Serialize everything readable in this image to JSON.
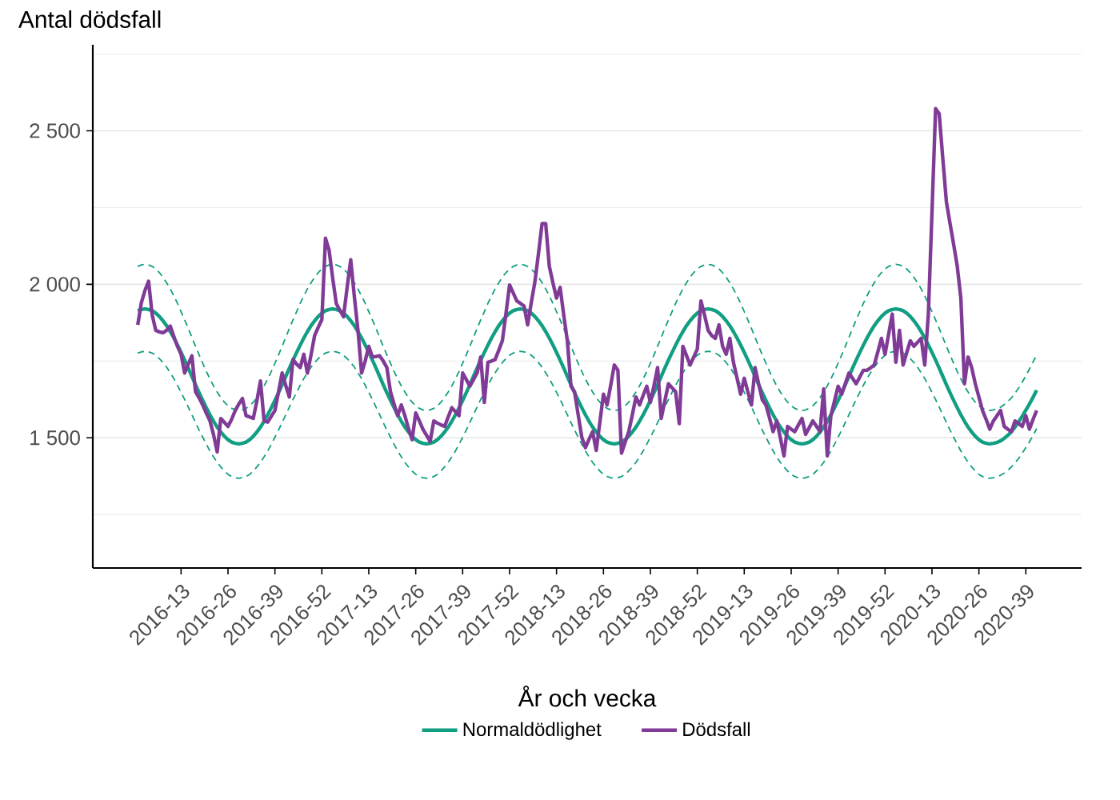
{
  "chart_data": {
    "type": "line",
    "xlabel": "År och vecka",
    "ylabel": "Antal dödsfall",
    "ylim": [
      1076,
      2780
    ],
    "categories": [
      null,
      null,
      null,
      null,
      null,
      null,
      null,
      null,
      null,
      null,
      null,
      null,
      "2016-13",
      null,
      null,
      null,
      null,
      null,
      null,
      null,
      null,
      null,
      null,
      null,
      null,
      "2016-26",
      null,
      null,
      null,
      null,
      null,
      null,
      null,
      null,
      null,
      null,
      null,
      null,
      "2016-39",
      null,
      null,
      null,
      null,
      null,
      null,
      null,
      null,
      null,
      null,
      null,
      null,
      "2016-52",
      null,
      null,
      null,
      null,
      null,
      null,
      null,
      null,
      null,
      null,
      null,
      null,
      "2017-13",
      null,
      null,
      null,
      null,
      null,
      null,
      null,
      null,
      null,
      null,
      null,
      null,
      "2017-26",
      null,
      null,
      null,
      null,
      null,
      null,
      null,
      null,
      null,
      null,
      null,
      null,
      "2017-39",
      null,
      null,
      null,
      null,
      null,
      null,
      null,
      null,
      null,
      null,
      null,
      null,
      "2017-52",
      null,
      null,
      null,
      null,
      null,
      null,
      null,
      null,
      null,
      null,
      null,
      null,
      "2018-13",
      null,
      null,
      null,
      null,
      null,
      null,
      null,
      null,
      null,
      null,
      null,
      null,
      "2018-26",
      null,
      null,
      null,
      null,
      null,
      null,
      null,
      null,
      null,
      null,
      null,
      null,
      "2018-39",
      null,
      null,
      null,
      null,
      null,
      null,
      null,
      null,
      null,
      null,
      null,
      null,
      "2018-52",
      null,
      null,
      null,
      null,
      null,
      null,
      null,
      null,
      null,
      null,
      null,
      null,
      "2019-13",
      null,
      null,
      null,
      null,
      null,
      null,
      null,
      null,
      null,
      null,
      null,
      null,
      "2019-26",
      null,
      null,
      null,
      null,
      null,
      null,
      null,
      null,
      null,
      null,
      null,
      null,
      "2019-39",
      null,
      null,
      null,
      null,
      null,
      null,
      null,
      null,
      null,
      null,
      null,
      null,
      "2019-52",
      null,
      null,
      null,
      null,
      null,
      null,
      null,
      null,
      null,
      null,
      null,
      null,
      "2020-13",
      null,
      null,
      null,
      null,
      null,
      null,
      null,
      null,
      null,
      null,
      null,
      null,
      "2020-26",
      null,
      null,
      null,
      null,
      null,
      null,
      null,
      null,
      null,
      null,
      null,
      null,
      "2020-39",
      null,
      null,
      null
    ],
    "yticks": [
      {
        "value": 1250,
        "label": null
      },
      {
        "value": 1500,
        "label": "1 500"
      },
      {
        "value": 1750,
        "label": null
      },
      {
        "value": 2000,
        "label": "2 000"
      },
      {
        "value": 2250,
        "label": null
      },
      {
        "value": 2500,
        "label": "2 500"
      },
      {
        "value": 2750,
        "label": null
      }
    ],
    "grid": "y",
    "legend": "bottom",
    "series": [
      {
        "color": "#119e82",
        "line_style": "dashed",
        "values": [
          2058,
          2063,
          2065,
          2063,
          2058,
          2050,
          2038,
          2023,
          2005,
          1985,
          1962,
          1938,
          1911,
          1884,
          1856,
          1827,
          1798,
          1770,
          1743,
          1716,
          1692,
          1669,
          1649,
          1631,
          1616,
          1604,
          1596,
          1591,
          1589,
          1591,
          1596,
          1604,
          1616,
          1631,
          1649,
          1669,
          1692,
          1716,
          1743,
          1770,
          1798,
          1827,
          1856,
          1884,
          1911,
          1938,
          1962,
          1985,
          2005,
          2023,
          2038,
          2050,
          2058,
          2063,
          2065,
          2063,
          2058,
          2050,
          2038,
          2023,
          2005,
          1985,
          1962,
          1938,
          1911,
          1884,
          1856,
          1827,
          1798,
          1770,
          1743,
          1716,
          1692,
          1669,
          1649,
          1631,
          1616,
          1604,
          1596,
          1591,
          1589,
          1591,
          1596,
          1604,
          1616,
          1631,
          1649,
          1669,
          1692,
          1716,
          1743,
          1770,
          1798,
          1827,
          1856,
          1884,
          1911,
          1938,
          1962,
          1985,
          2005,
          2023,
          2038,
          2050,
          2058,
          2063,
          2065,
          2063,
          2058,
          2050,
          2038,
          2023,
          2005,
          1985,
          1962,
          1938,
          1911,
          1884,
          1856,
          1827,
          1798,
          1770,
          1743,
          1716,
          1692,
          1669,
          1649,
          1631,
          1616,
          1604,
          1596,
          1591,
          1589,
          1591,
          1596,
          1604,
          1616,
          1631,
          1649,
          1669,
          1692,
          1716,
          1743,
          1770,
          1798,
          1827,
          1856,
          1884,
          1911,
          1938,
          1962,
          1985,
          2005,
          2023,
          2038,
          2050,
          2058,
          2063,
          2065,
          2063,
          2058,
          2050,
          2038,
          2023,
          2005,
          1985,
          1962,
          1938,
          1911,
          1884,
          1856,
          1827,
          1798,
          1770,
          1743,
          1716,
          1692,
          1669,
          1649,
          1631,
          1616,
          1604,
          1596,
          1591,
          1589,
          1591,
          1596,
          1604,
          1616,
          1631,
          1649,
          1669,
          1692,
          1716,
          1743,
          1770,
          1798,
          1827,
          1856,
          1884,
          1911,
          1938,
          1962,
          1985,
          2005,
          2023,
          2038,
          2050,
          2058,
          2063,
          2065,
          2063,
          2058,
          2050,
          2038,
          2023,
          2005,
          1985,
          1962,
          1938,
          1911,
          1884,
          1856,
          1827,
          1798,
          1770,
          1743,
          1716,
          1692,
          1669,
          1649,
          1631,
          1616,
          1604,
          1596,
          1591,
          1589,
          1591,
          1594,
          1600,
          1608,
          1618,
          1630,
          1645,
          1662,
          1681,
          1702,
          1724,
          1747,
          1770
        ]
      },
      {
        "color": "#119e82",
        "line_style": "dashed",
        "values": [
          1776,
          1780,
          1782,
          1780,
          1776,
          1769,
          1758,
          1745,
          1730,
          1712,
          1693,
          1671,
          1648,
          1625,
          1600,
          1575,
          1550,
          1525,
          1502,
          1479,
          1457,
          1438,
          1420,
          1405,
          1392,
          1381,
          1374,
          1370,
          1368,
          1370,
          1374,
          1381,
          1392,
          1405,
          1420,
          1438,
          1457,
          1479,
          1502,
          1525,
          1550,
          1575,
          1600,
          1625,
          1648,
          1671,
          1693,
          1712,
          1730,
          1745,
          1758,
          1769,
          1776,
          1780,
          1782,
          1780,
          1776,
          1769,
          1758,
          1745,
          1730,
          1712,
          1693,
          1671,
          1648,
          1625,
          1600,
          1575,
          1550,
          1525,
          1502,
          1479,
          1457,
          1438,
          1420,
          1405,
          1392,
          1381,
          1374,
          1370,
          1368,
          1370,
          1374,
          1381,
          1392,
          1405,
          1420,
          1438,
          1457,
          1479,
          1502,
          1525,
          1550,
          1575,
          1600,
          1625,
          1648,
          1671,
          1693,
          1712,
          1730,
          1745,
          1758,
          1769,
          1776,
          1780,
          1782,
          1780,
          1776,
          1769,
          1758,
          1745,
          1730,
          1712,
          1693,
          1671,
          1648,
          1625,
          1600,
          1575,
          1550,
          1525,
          1502,
          1479,
          1457,
          1438,
          1420,
          1405,
          1392,
          1381,
          1374,
          1370,
          1368,
          1370,
          1374,
          1381,
          1392,
          1405,
          1420,
          1438,
          1457,
          1479,
          1502,
          1525,
          1550,
          1575,
          1600,
          1625,
          1648,
          1671,
          1693,
          1712,
          1730,
          1745,
          1758,
          1769,
          1776,
          1780,
          1782,
          1780,
          1776,
          1769,
          1758,
          1745,
          1730,
          1712,
          1693,
          1671,
          1648,
          1625,
          1600,
          1575,
          1550,
          1525,
          1502,
          1479,
          1457,
          1438,
          1420,
          1405,
          1392,
          1381,
          1374,
          1370,
          1368,
          1370,
          1374,
          1381,
          1392,
          1405,
          1420,
          1438,
          1457,
          1479,
          1502,
          1525,
          1550,
          1575,
          1600,
          1625,
          1648,
          1671,
          1693,
          1712,
          1730,
          1745,
          1758,
          1769,
          1776,
          1780,
          1782,
          1780,
          1776,
          1769,
          1758,
          1745,
          1730,
          1712,
          1693,
          1671,
          1648,
          1625,
          1600,
          1575,
          1550,
          1525,
          1502,
          1479,
          1457,
          1438,
          1420,
          1405,
          1392,
          1381,
          1374,
          1370,
          1368,
          1370,
          1373,
          1378,
          1385,
          1394,
          1405,
          1418,
          1433,
          1450,
          1468,
          1487,
          1508,
          1530
        ]
      },
      {
        "name": "Normaldödlighet",
        "color": "#119e82",
        "line_style": "solid",
        "values": [
          1914,
          1918,
          1920,
          1918,
          1914,
          1906,
          1895,
          1881,
          1865,
          1846,
          1825,
          1802,
          1778,
          1753,
          1727,
          1700,
          1673,
          1647,
          1622,
          1598,
          1575,
          1554,
          1535,
          1519,
          1505,
          1494,
          1486,
          1482,
          1480,
          1482,
          1486,
          1494,
          1505,
          1519,
          1535,
          1554,
          1575,
          1598,
          1622,
          1647,
          1673,
          1700,
          1727,
          1753,
          1778,
          1802,
          1825,
          1846,
          1865,
          1881,
          1895,
          1906,
          1914,
          1918,
          1920,
          1918,
          1914,
          1906,
          1895,
          1881,
          1865,
          1846,
          1825,
          1802,
          1778,
          1753,
          1727,
          1700,
          1673,
          1647,
          1622,
          1598,
          1575,
          1554,
          1535,
          1519,
          1505,
          1494,
          1486,
          1482,
          1480,
          1482,
          1486,
          1494,
          1505,
          1519,
          1535,
          1554,
          1575,
          1598,
          1622,
          1647,
          1673,
          1700,
          1727,
          1753,
          1778,
          1802,
          1825,
          1846,
          1865,
          1881,
          1895,
          1906,
          1914,
          1918,
          1920,
          1918,
          1914,
          1906,
          1895,
          1881,
          1865,
          1846,
          1825,
          1802,
          1778,
          1753,
          1727,
          1700,
          1673,
          1647,
          1622,
          1598,
          1575,
          1554,
          1535,
          1519,
          1505,
          1494,
          1486,
          1482,
          1480,
          1482,
          1486,
          1494,
          1505,
          1519,
          1535,
          1554,
          1575,
          1598,
          1622,
          1647,
          1673,
          1700,
          1727,
          1753,
          1778,
          1802,
          1825,
          1846,
          1865,
          1881,
          1895,
          1906,
          1914,
          1918,
          1920,
          1918,
          1914,
          1906,
          1895,
          1881,
          1865,
          1846,
          1825,
          1802,
          1778,
          1753,
          1727,
          1700,
          1673,
          1647,
          1622,
          1598,
          1575,
          1554,
          1535,
          1519,
          1505,
          1494,
          1486,
          1482,
          1480,
          1482,
          1486,
          1494,
          1505,
          1519,
          1535,
          1554,
          1575,
          1598,
          1622,
          1647,
          1673,
          1700,
          1727,
          1753,
          1778,
          1802,
          1825,
          1846,
          1865,
          1881,
          1895,
          1906,
          1914,
          1918,
          1920,
          1918,
          1914,
          1906,
          1895,
          1881,
          1865,
          1846,
          1825,
          1802,
          1778,
          1753,
          1727,
          1700,
          1673,
          1647,
          1622,
          1598,
          1575,
          1554,
          1535,
          1519,
          1505,
          1494,
          1486,
          1482,
          1480,
          1482,
          1485,
          1490,
          1498,
          1508,
          1520,
          1535,
          1552,
          1570,
          1590,
          1610,
          1632,
          1655
        ]
      },
      {
        "name": "Dödsfall",
        "color": "#7f3b96",
        "line_style": "solid",
        "values": [
          1868,
          1940,
          1980,
          2010,
          1900,
          1850,
          1845,
          1842,
          1850,
          1864,
          1830,
          1798,
          1772,
          1711,
          1740,
          1767,
          1650,
          1630,
          1607,
          1580,
          1555,
          1510,
          1454,
          1563,
          1550,
          1537,
          1560,
          1589,
          1610,
          1628,
          1572,
          1568,
          1563,
          1620,
          1685,
          1555,
          1551,
          1570,
          1589,
          1650,
          1711,
          1670,
          1633,
          1755,
          1740,
          1729,
          1772,
          1711,
          1770,
          1833,
          1860,
          1885,
          2150,
          2111,
          2020,
          1937,
          1915,
          1894,
          1990,
          2080,
          1960,
          1850,
          1711,
          1750,
          1798,
          1763,
          1765,
          1767,
          1750,
          1729,
          1650,
          1610,
          1572,
          1607,
          1572,
          1530,
          1494,
          1581,
          1555,
          1528,
          1508,
          1488,
          1555,
          1548,
          1542,
          1537,
          1568,
          1598,
          1585,
          1572,
          1711,
          1690,
          1668,
          1690,
          1711,
          1763,
          1615,
          1746,
          1750,
          1755,
          1785,
          1816,
          1905,
          1998,
          1972,
          1946,
          1938,
          1929,
          1868,
          1940,
          2007,
          2100,
          2198,
          2198,
          2059,
          2005,
          1955,
          1990,
          1900,
          1816,
          1668,
          1650,
          1575,
          1502,
          1468,
          1495,
          1520,
          1459,
          1550,
          1642,
          1607,
          1670,
          1737,
          1720,
          1450,
          1485,
          1520,
          1575,
          1633,
          1607,
          1638,
          1668,
          1615,
          1670,
          1729,
          1563,
          1620,
          1676,
          1663,
          1650,
          1546,
          1798,
          1768,
          1737,
          1763,
          1789,
          1946,
          1900,
          1850,
          1833,
          1824,
          1868,
          1798,
          1772,
          1824,
          1746,
          1695,
          1642,
          1694,
          1650,
          1607,
          1729,
          1675,
          1624,
          1607,
          1565,
          1520,
          1555,
          1500,
          1441,
          1537,
          1528,
          1520,
          1542,
          1563,
          1511,
          1533,
          1555,
          1538,
          1520,
          1659,
          1441,
          1572,
          1620,
          1668,
          1642,
          1677,
          1711,
          1694,
          1676,
          1698,
          1720,
          1720,
          1728,
          1737,
          1780,
          1824,
          1772,
          1838,
          1903,
          1746,
          1850,
          1737,
          1777,
          1816,
          1798,
          1811,
          1824,
          1737,
          1903,
          2233,
          2572,
          2555,
          2410,
          2268,
          2198,
          2130,
          2059,
          1955,
          1676,
          1763,
          1729,
          1676,
          1633,
          1589,
          1560,
          1528,
          1555,
          1572,
          1589,
          1537,
          1528,
          1520,
          1555,
          1546,
          1537,
          1572,
          1528,
          1560,
          1589
        ]
      }
    ]
  }
}
